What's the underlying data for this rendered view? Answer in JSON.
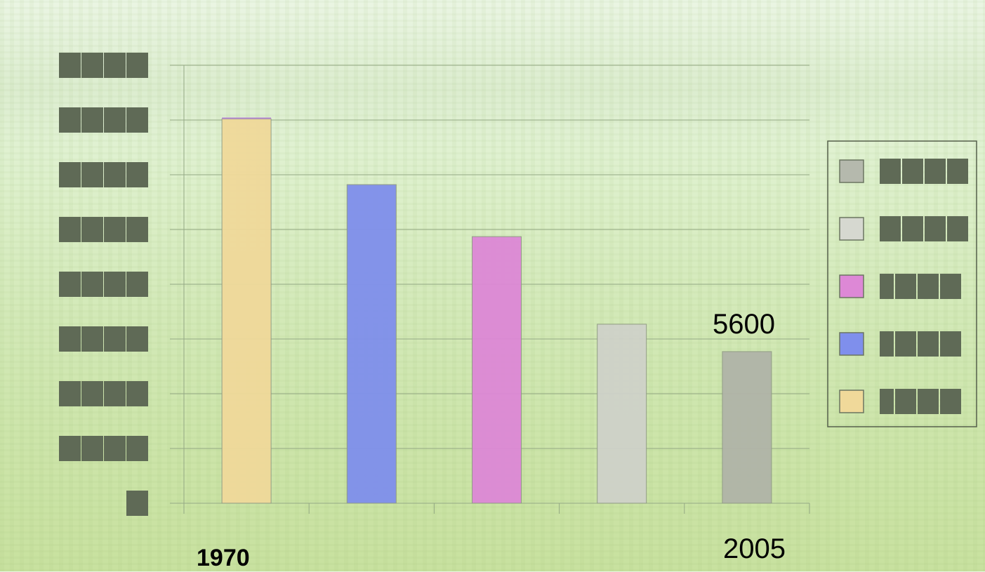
{
  "chart_data": {
    "type": "bar",
    "categories": [
      "",
      "",
      "",
      "",
      ""
    ],
    "values": [
      7020,
      5820,
      4870,
      3270,
      2770
    ],
    "ylim": [
      0,
      8000
    ],
    "grid": true,
    "legend_position": "right",
    "series_colors": [
      "#f0d99a",
      "#7f8fec",
      "#dd88d6",
      "#cfd2c9",
      "#b0b4a8"
    ],
    "legend_colors": [
      "#b5b9ad",
      "#d6d8d0",
      "#dd88d6",
      "#7f8fec",
      "#f0d99a"
    ],
    "annotation": "5600",
    "x_labels": {
      "first": "1970",
      "last": "2005"
    }
  }
}
